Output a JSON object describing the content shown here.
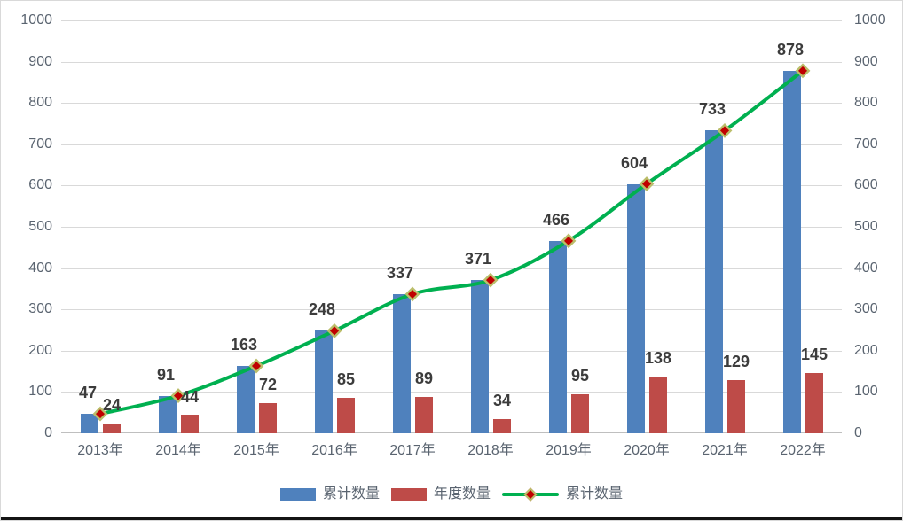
{
  "frame": {
    "background": "#FFFFFF",
    "border_color": "#D9D9D9",
    "bottom_edge_color": "#141414"
  },
  "chart_data": {
    "type": "combo",
    "categories": [
      "2013年",
      "2014年",
      "2015年",
      "2016年",
      "2017年",
      "2018年",
      "2019年",
      "2020年",
      "2021年",
      "2022年"
    ],
    "series": [
      {
        "name": "累计数量",
        "type": "bar",
        "color": "#4F81BD",
        "data_labels": false,
        "values": [
          47,
          91,
          163,
          248,
          337,
          371,
          466,
          604,
          733,
          878
        ]
      },
      {
        "name": "年度数量",
        "type": "bar",
        "color": "#BE4B48",
        "data_labels": true,
        "values": [
          24,
          44,
          72,
          85,
          89,
          34,
          95,
          138,
          129,
          145
        ]
      },
      {
        "name": "累计数量",
        "type": "line",
        "color": "#00B050",
        "smooth": true,
        "data_labels": true,
        "marker": {
          "shape": "diamond",
          "fill": "#C00000",
          "border": "#BBBE6A"
        },
        "values": [
          47,
          91,
          163,
          248,
          337,
          371,
          466,
          604,
          733,
          878
        ]
      }
    ],
    "y_axis_left": {
      "min": 0,
      "max": 1000,
      "step": 100,
      "ticks": [
        1000,
        900,
        800,
        700,
        600,
        500,
        400,
        300,
        200,
        100,
        0
      ]
    },
    "y_axis_right": {
      "min": 0,
      "max": 1000,
      "step": 100,
      "ticks": [
        1000,
        900,
        800,
        700,
        600,
        500,
        400,
        300,
        200,
        100,
        0
      ]
    },
    "gridlines": {
      "color": "#D9D9D9",
      "zero_line_color": "#BFBFBF",
      "vertical": false
    },
    "label_color": "#3C3C3C",
    "axis_text_color": "#5A6470",
    "legend_position": "bottom",
    "title": ""
  },
  "legend": {
    "items": [
      {
        "label": "累计数量",
        "swatch": "bar",
        "color": "#4F81BD"
      },
      {
        "label": "年度数量",
        "swatch": "bar",
        "color": "#BE4B48"
      },
      {
        "label": "累计数量",
        "swatch": "line-diamond",
        "color": "#00B050",
        "marker_fill": "#C00000",
        "marker_border": "#BBBE6A"
      }
    ]
  }
}
